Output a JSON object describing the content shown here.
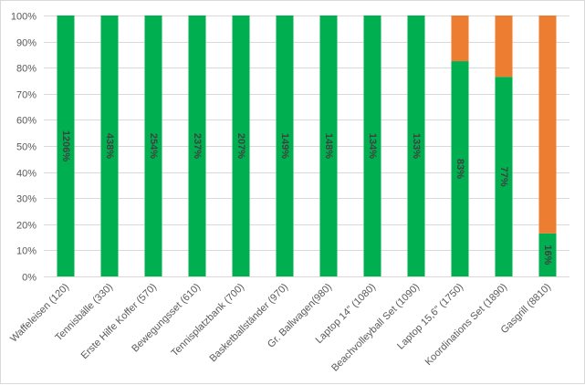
{
  "chart_data": {
    "type": "bar",
    "stacked": "percent",
    "categories": [
      "Waffeleisen (120)",
      "Tennisbälle (330)",
      "Erste Hilfe Koffer (570)",
      "Bewegungsset (610)",
      "Tennisplatzbank (700)",
      "Basketballständer (970)",
      "Gr. Ballwagen(980)",
      "Laptop 14\" (1080)",
      "Beachvolleyball Set (1090)",
      "Laptop 15,6\" (1750)",
      "Koordinations Set (1890)",
      "Gasgrill (8810)"
    ],
    "series": [
      {
        "color": "#00b050",
        "values": [
          100,
          100,
          100,
          100,
          100,
          100,
          100,
          100,
          100,
          82.5,
          76.5,
          16.5
        ]
      },
      {
        "color": "#ed7d31",
        "values": [
          0,
          0,
          0,
          0,
          0,
          0,
          0,
          0,
          0,
          17.5,
          23.5,
          83.5
        ]
      }
    ],
    "data_labels": [
      "1206%",
      "438%",
      "254%",
      "237%",
      "207%",
      "149%",
      "148%",
      "134%",
      "133%",
      "83%",
      "77%",
      "16%"
    ],
    "yticks": [
      "0%",
      "10%",
      "20%",
      "30%",
      "40%",
      "50%",
      "60%",
      "70%",
      "80%",
      "90%",
      "100%"
    ],
    "ylim": [
      0,
      100
    ],
    "grid": true,
    "legend": "none",
    "title": "",
    "xlabel": "",
    "ylabel": ""
  }
}
